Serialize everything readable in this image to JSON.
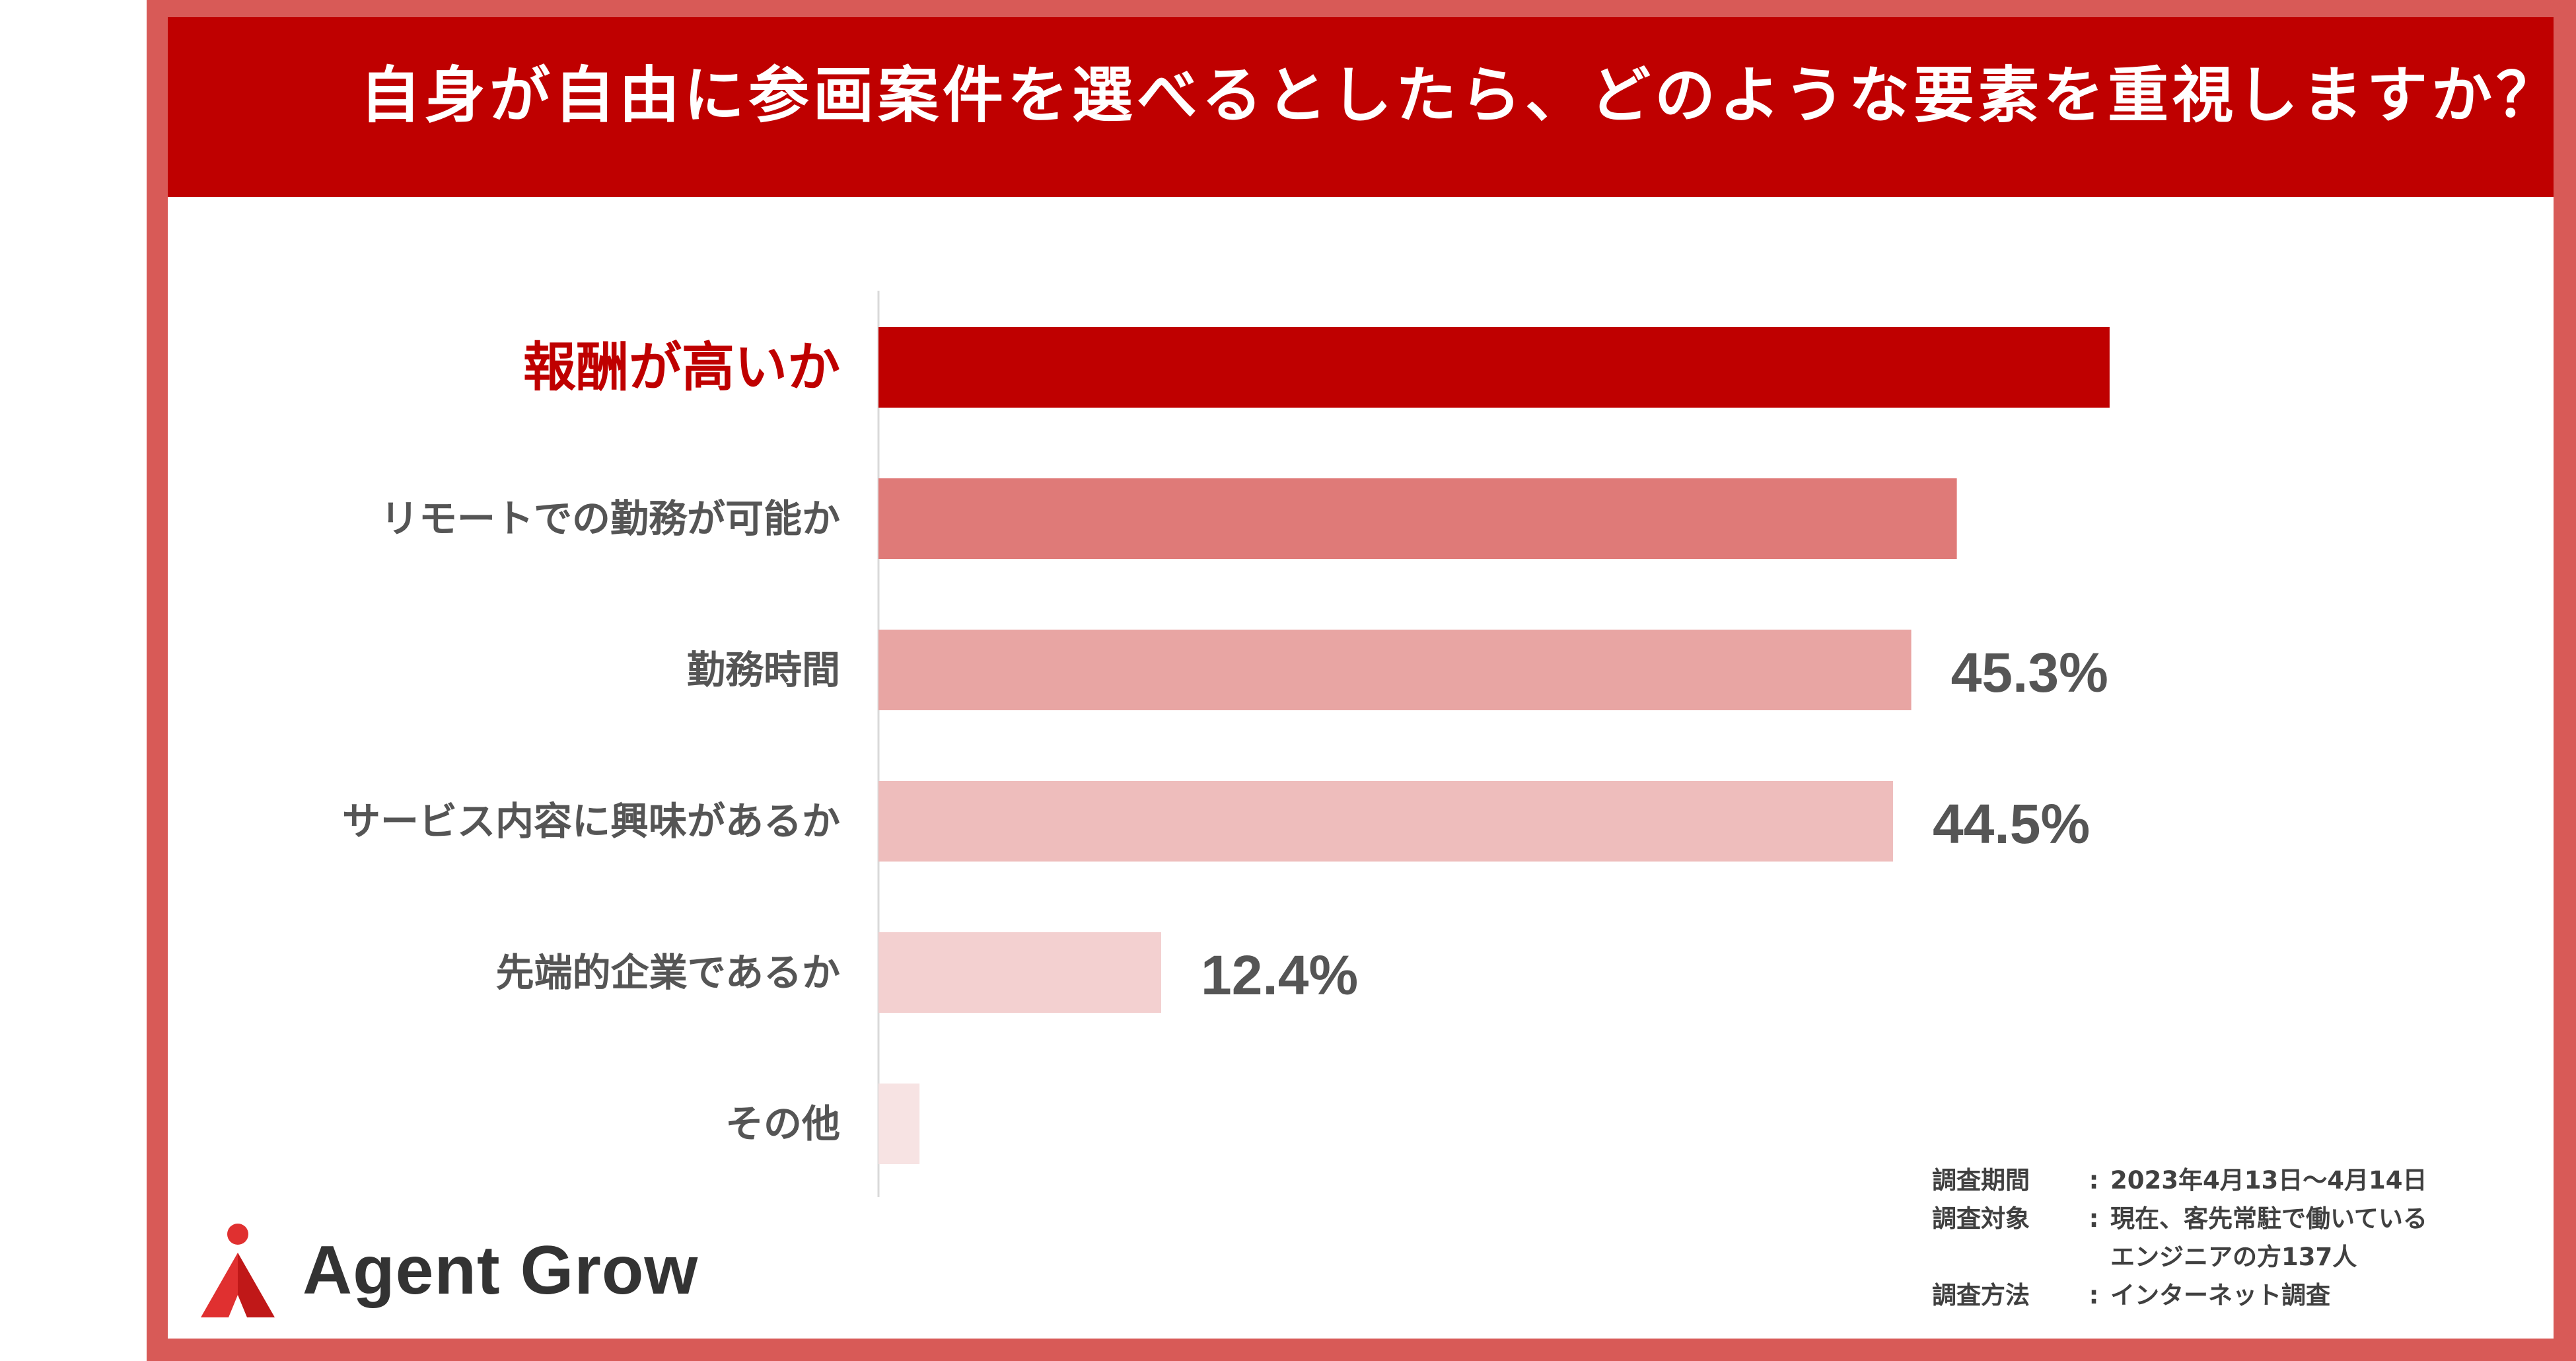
{
  "header": {
    "title": "自身が自由に参画案件を選べるとしたら、どのような要素を重視しますか？"
  },
  "chart_data": {
    "type": "bar",
    "orientation": "horizontal",
    "title": "自身が自由に参画案件を選べるとしたら、どのような要素を重視しますか？",
    "categories": [
      "報酬が高いか",
      "リモートでの勤務が可能か",
      "勤務時間",
      "サービス内容に興味があるか",
      "先端的企業であるか",
      "その他"
    ],
    "values": [
      54.0,
      47.3,
      45.3,
      44.5,
      12.4,
      1.8
    ],
    "value_labels": [
      "",
      "",
      "45.3%",
      "44.5%",
      "12.4%",
      ""
    ],
    "colors": [
      "#bf0000",
      "#df7a78",
      "#e8a5a3",
      "#eebdbc",
      "#f3d0d0",
      "#f7e3e3"
    ],
    "highlight_color": "#bf0000",
    "label_color": "#555555",
    "xlim": [
      0,
      62
    ],
    "grid": false,
    "legend": "none"
  },
  "brand": {
    "name": "Agent Grow",
    "accent_color": "#e03030"
  },
  "survey": {
    "period_key": "調査期間",
    "period_value": "2023年4月13日〜4月14日",
    "target_key": "調査対象",
    "target_value_line1": "現在、客先常駐で働いている",
    "target_value_line2": "エンジニアの方137人",
    "method_key": "調査方法",
    "method_value": "インターネット調査",
    "separator": ":"
  }
}
